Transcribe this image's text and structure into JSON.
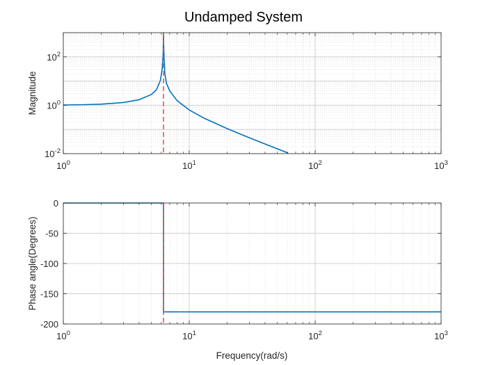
{
  "title": "Undamped System",
  "colors": {
    "curve": "#0072BD",
    "marker": "#E8474A",
    "grid_major": "#d0d0d0",
    "grid_minor": "#e3e3e3",
    "axis": "#262626"
  },
  "chart_data": [
    {
      "type": "line",
      "name": "magnitude",
      "xlabel": "",
      "ylabel": "Magnitude",
      "xscale": "log",
      "yscale": "log",
      "xlim": [
        1,
        1000
      ],
      "ylim": [
        0.01,
        1000
      ],
      "xticks": [
        {
          "value": 1,
          "base": "10",
          "exp": "0"
        },
        {
          "value": 10,
          "base": "10",
          "exp": "1"
        },
        {
          "value": 100,
          "base": "10",
          "exp": "2"
        },
        {
          "value": 1000,
          "base": "10",
          "exp": "3"
        }
      ],
      "yticks": [
        {
          "value": 0.01,
          "base": "10",
          "exp": "-2"
        },
        {
          "value": 1,
          "base": "10",
          "exp": "0"
        },
        {
          "value": 100,
          "base": "10",
          "exp": "2"
        }
      ],
      "grid": true,
      "resonance_line": {
        "x": 6.25,
        "style": "dashed"
      },
      "series": [
        {
          "x": [
            1,
            1.5,
            2,
            3,
            4,
            5,
            5.5,
            5.9,
            6.1,
            6.2,
            6.23,
            6.25,
            6.27,
            6.3,
            6.4,
            6.6,
            7,
            8,
            10,
            13,
            20,
            30,
            40,
            50,
            61
          ],
          "y": [
            1.026,
            1.061,
            1.114,
            1.299,
            1.695,
            2.78,
            4.42,
            10.6,
            31.5,
            124,
            300,
            1000,
            300,
            124,
            20.3,
            7.95,
            3.92,
            1.56,
            0.64,
            0.3,
            0.108,
            0.0453,
            0.0251,
            0.0159,
            0.0106
          ]
        }
      ]
    },
    {
      "type": "line",
      "name": "phase",
      "xlabel": "Frequency(rad/s)",
      "ylabel": "Phase angle(Degrees)",
      "xscale": "log",
      "yscale": "linear",
      "xlim": [
        1,
        1000
      ],
      "ylim": [
        -200,
        0
      ],
      "xticks": [
        {
          "value": 1,
          "base": "10",
          "exp": "0"
        },
        {
          "value": 10,
          "base": "10",
          "exp": "1"
        },
        {
          "value": 100,
          "base": "10",
          "exp": "2"
        },
        {
          "value": 1000,
          "base": "10",
          "exp": "3"
        }
      ],
      "yticks": [
        {
          "value": 0,
          "label": "0"
        },
        {
          "value": -50,
          "label": "-50"
        },
        {
          "value": -100,
          "label": "-100"
        },
        {
          "value": -150,
          "label": "-150"
        },
        {
          "value": -200,
          "label": "-200"
        }
      ],
      "grid": true,
      "resonance_line": {
        "x": 6.25,
        "style": "dashed"
      },
      "series": [
        {
          "x": [
            1,
            6.25,
            6.25,
            1000
          ],
          "y": [
            0,
            0,
            -180,
            -180
          ]
        }
      ]
    }
  ]
}
